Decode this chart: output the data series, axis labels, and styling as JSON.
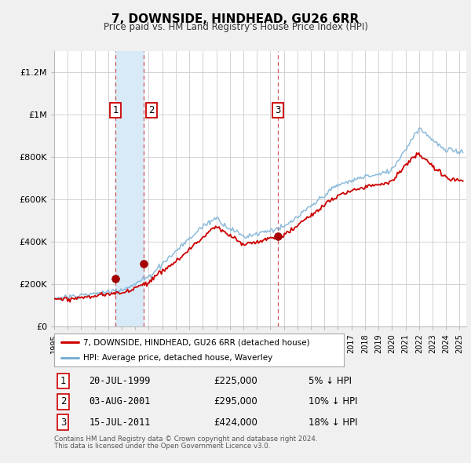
{
  "title": "7, DOWNSIDE, HINDHEAD, GU26 6RR",
  "subtitle": "Price paid vs. HM Land Registry's House Price Index (HPI)",
  "ylim": [
    0,
    1300000
  ],
  "yticks": [
    0,
    200000,
    400000,
    600000,
    800000,
    1000000,
    1200000
  ],
  "ytick_labels": [
    "£0",
    "£200K",
    "£400K",
    "£600K",
    "£800K",
    "£1M",
    "£1.2M"
  ],
  "xlim_start": 1995.0,
  "xlim_end": 2025.5,
  "xticks": [
    1995,
    1996,
    1997,
    1998,
    1999,
    2000,
    2001,
    2002,
    2003,
    2004,
    2005,
    2006,
    2007,
    2008,
    2009,
    2010,
    2011,
    2012,
    2013,
    2014,
    2015,
    2016,
    2017,
    2018,
    2019,
    2020,
    2021,
    2022,
    2023,
    2024,
    2025
  ],
  "plot_bg_color": "#ffffff",
  "grid_color": "#cccccc",
  "red_line_color": "#cc0000",
  "blue_line_color": "#7ab0d4",
  "sale_marker_color": "#aa0000",
  "vline_color": "#cc4444",
  "vline_shade_color": "#d8eaf8",
  "t1_x": 1999.55,
  "t2_x": 2001.6,
  "t3_x": 2011.54,
  "sale_prices": [
    225000,
    295000,
    424000
  ],
  "legend_line1": "7, DOWNSIDE, HINDHEAD, GU26 6RR (detached house)",
  "legend_line2": "HPI: Average price, detached house, Waverley",
  "table_rows": [
    {
      "num": "1",
      "date": "20-JUL-1999",
      "price": "£225,000",
      "hpi": "5% ↓ HPI"
    },
    {
      "num": "2",
      "date": "03-AUG-2001",
      "price": "£295,000",
      "hpi": "10% ↓ HPI"
    },
    {
      "num": "3",
      "date": "15-JUL-2011",
      "price": "£424,000",
      "hpi": "18% ↓ HPI"
    }
  ],
  "footnote1": "Contains HM Land Registry data © Crown copyright and database right 2024.",
  "footnote2": "This data is licensed under the Open Government Licence v3.0.",
  "fig_bg": "#f0f0f0"
}
